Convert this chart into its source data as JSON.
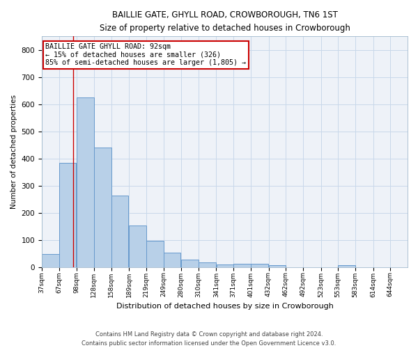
{
  "title1": "BAILLIE GATE, GHYLL ROAD, CROWBOROUGH, TN6 1ST",
  "title2": "Size of property relative to detached houses in Crowborough",
  "xlabel": "Distribution of detached houses by size in Crowborough",
  "ylabel": "Number of detached properties",
  "footer1": "Contains HM Land Registry data © Crown copyright and database right 2024.",
  "footer2": "Contains public sector information licensed under the Open Government Licence v3.0.",
  "annotation_line1": "BAILLIE GATE GHYLL ROAD: 92sqm",
  "annotation_line2": "← 15% of detached houses are smaller (326)",
  "annotation_line3": "85% of semi-detached houses are larger (1,805) →",
  "property_size": 92,
  "bins": [
    37,
    67,
    98,
    128,
    158,
    189,
    219,
    249,
    280,
    310,
    341,
    371,
    401,
    432,
    462,
    492,
    523,
    553,
    583,
    614,
    644
  ],
  "values": [
    50,
    385,
    625,
    440,
    265,
    155,
    97,
    55,
    28,
    17,
    10,
    12,
    12,
    8,
    0,
    0,
    0,
    7,
    0,
    0,
    0
  ],
  "bar_color": "#b8d0e8",
  "bar_edge_color": "#6699cc",
  "vertical_line_color": "#cc0000",
  "annotation_box_color": "#cc0000",
  "grid_color": "#c8d8ea",
  "background_color": "#eef2f8",
  "ylim": [
    0,
    850
  ],
  "yticks": [
    0,
    100,
    200,
    300,
    400,
    500,
    600,
    700,
    800
  ],
  "bin_width": 30
}
